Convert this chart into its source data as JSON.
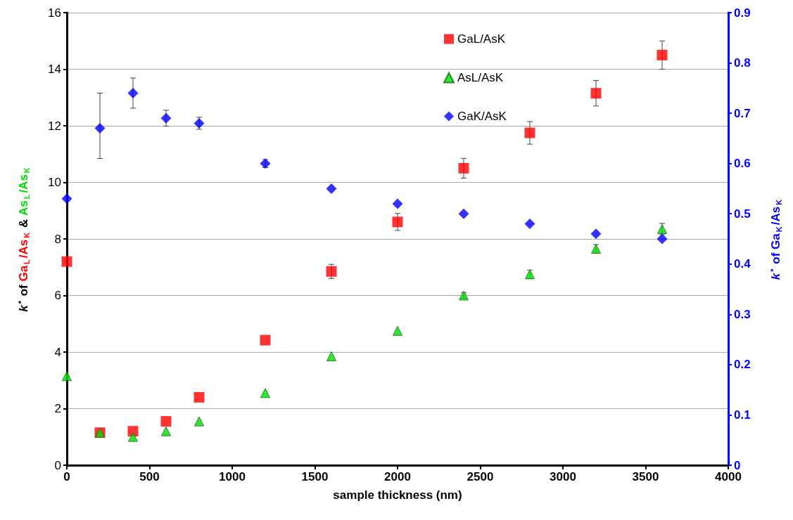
{
  "chart_data": {
    "type": "scatter",
    "xlabel": "sample thickness (nm)",
    "ylabel": "k$^{*}$ of Ga$_{L}$/As$_{K}$ & As$_{L}$/As$_{K}$",
    "y2label": "k$^{*}$ of Ga$_{K}$/As$_{K}$",
    "x": [
      0,
      200,
      400,
      600,
      800,
      1200,
      1600,
      2000,
      2400,
      2800,
      3200,
      3600
    ],
    "series": [
      {
        "name": "GaL/AsK",
        "color": "#ff0000",
        "marker": "square",
        "values": [
          7.2,
          1.15,
          1.2,
          1.55,
          2.4,
          4.42,
          6.85,
          8.6,
          10.5,
          11.75,
          13.15,
          14.5
        ],
        "errors": [
          null,
          null,
          null,
          null,
          null,
          null,
          0.25,
          0.3,
          0.35,
          0.4,
          0.45,
          0.5
        ]
      },
      {
        "name": "AsL/AsK",
        "color": "#00dd00",
        "marker": "triangle",
        "values": [
          3.15,
          1.15,
          1.0,
          1.2,
          1.55,
          2.55,
          3.85,
          4.75,
          6.0,
          6.75,
          7.65,
          8.35
        ],
        "errors": [
          null,
          null,
          null,
          null,
          null,
          null,
          null,
          null,
          0.1,
          0.15,
          0.15,
          0.2
        ]
      },
      {
        "name": "GaK/AsK",
        "color": "#0000ff",
        "marker": "diamond",
        "axis": "y2",
        "values": [
          0.53,
          0.67,
          0.74,
          0.69,
          0.68,
          0.6,
          0.55,
          0.52,
          0.5,
          0.48,
          0.46,
          0.45
        ],
        "errors": [
          null,
          [
            0.61,
            0.74
          ],
          0.03,
          0.016,
          0.012,
          0.008,
          null,
          null,
          null,
          null,
          null,
          null
        ]
      }
    ],
    "xlim": [
      0,
      4000
    ],
    "xticks": [
      0,
      500,
      1000,
      1500,
      2000,
      2500,
      3000,
      3500,
      4000
    ],
    "ylim": [
      0,
      16
    ],
    "yticks": [
      0,
      2,
      4,
      6,
      8,
      10,
      12,
      14,
      16
    ],
    "y2lim": [
      0,
      0.9
    ],
    "y2ticks": [
      0,
      0.1,
      0.2,
      0.3,
      0.4,
      0.5,
      0.6,
      0.7,
      0.8,
      0.9
    ],
    "grid": "y",
    "legend": "top"
  }
}
